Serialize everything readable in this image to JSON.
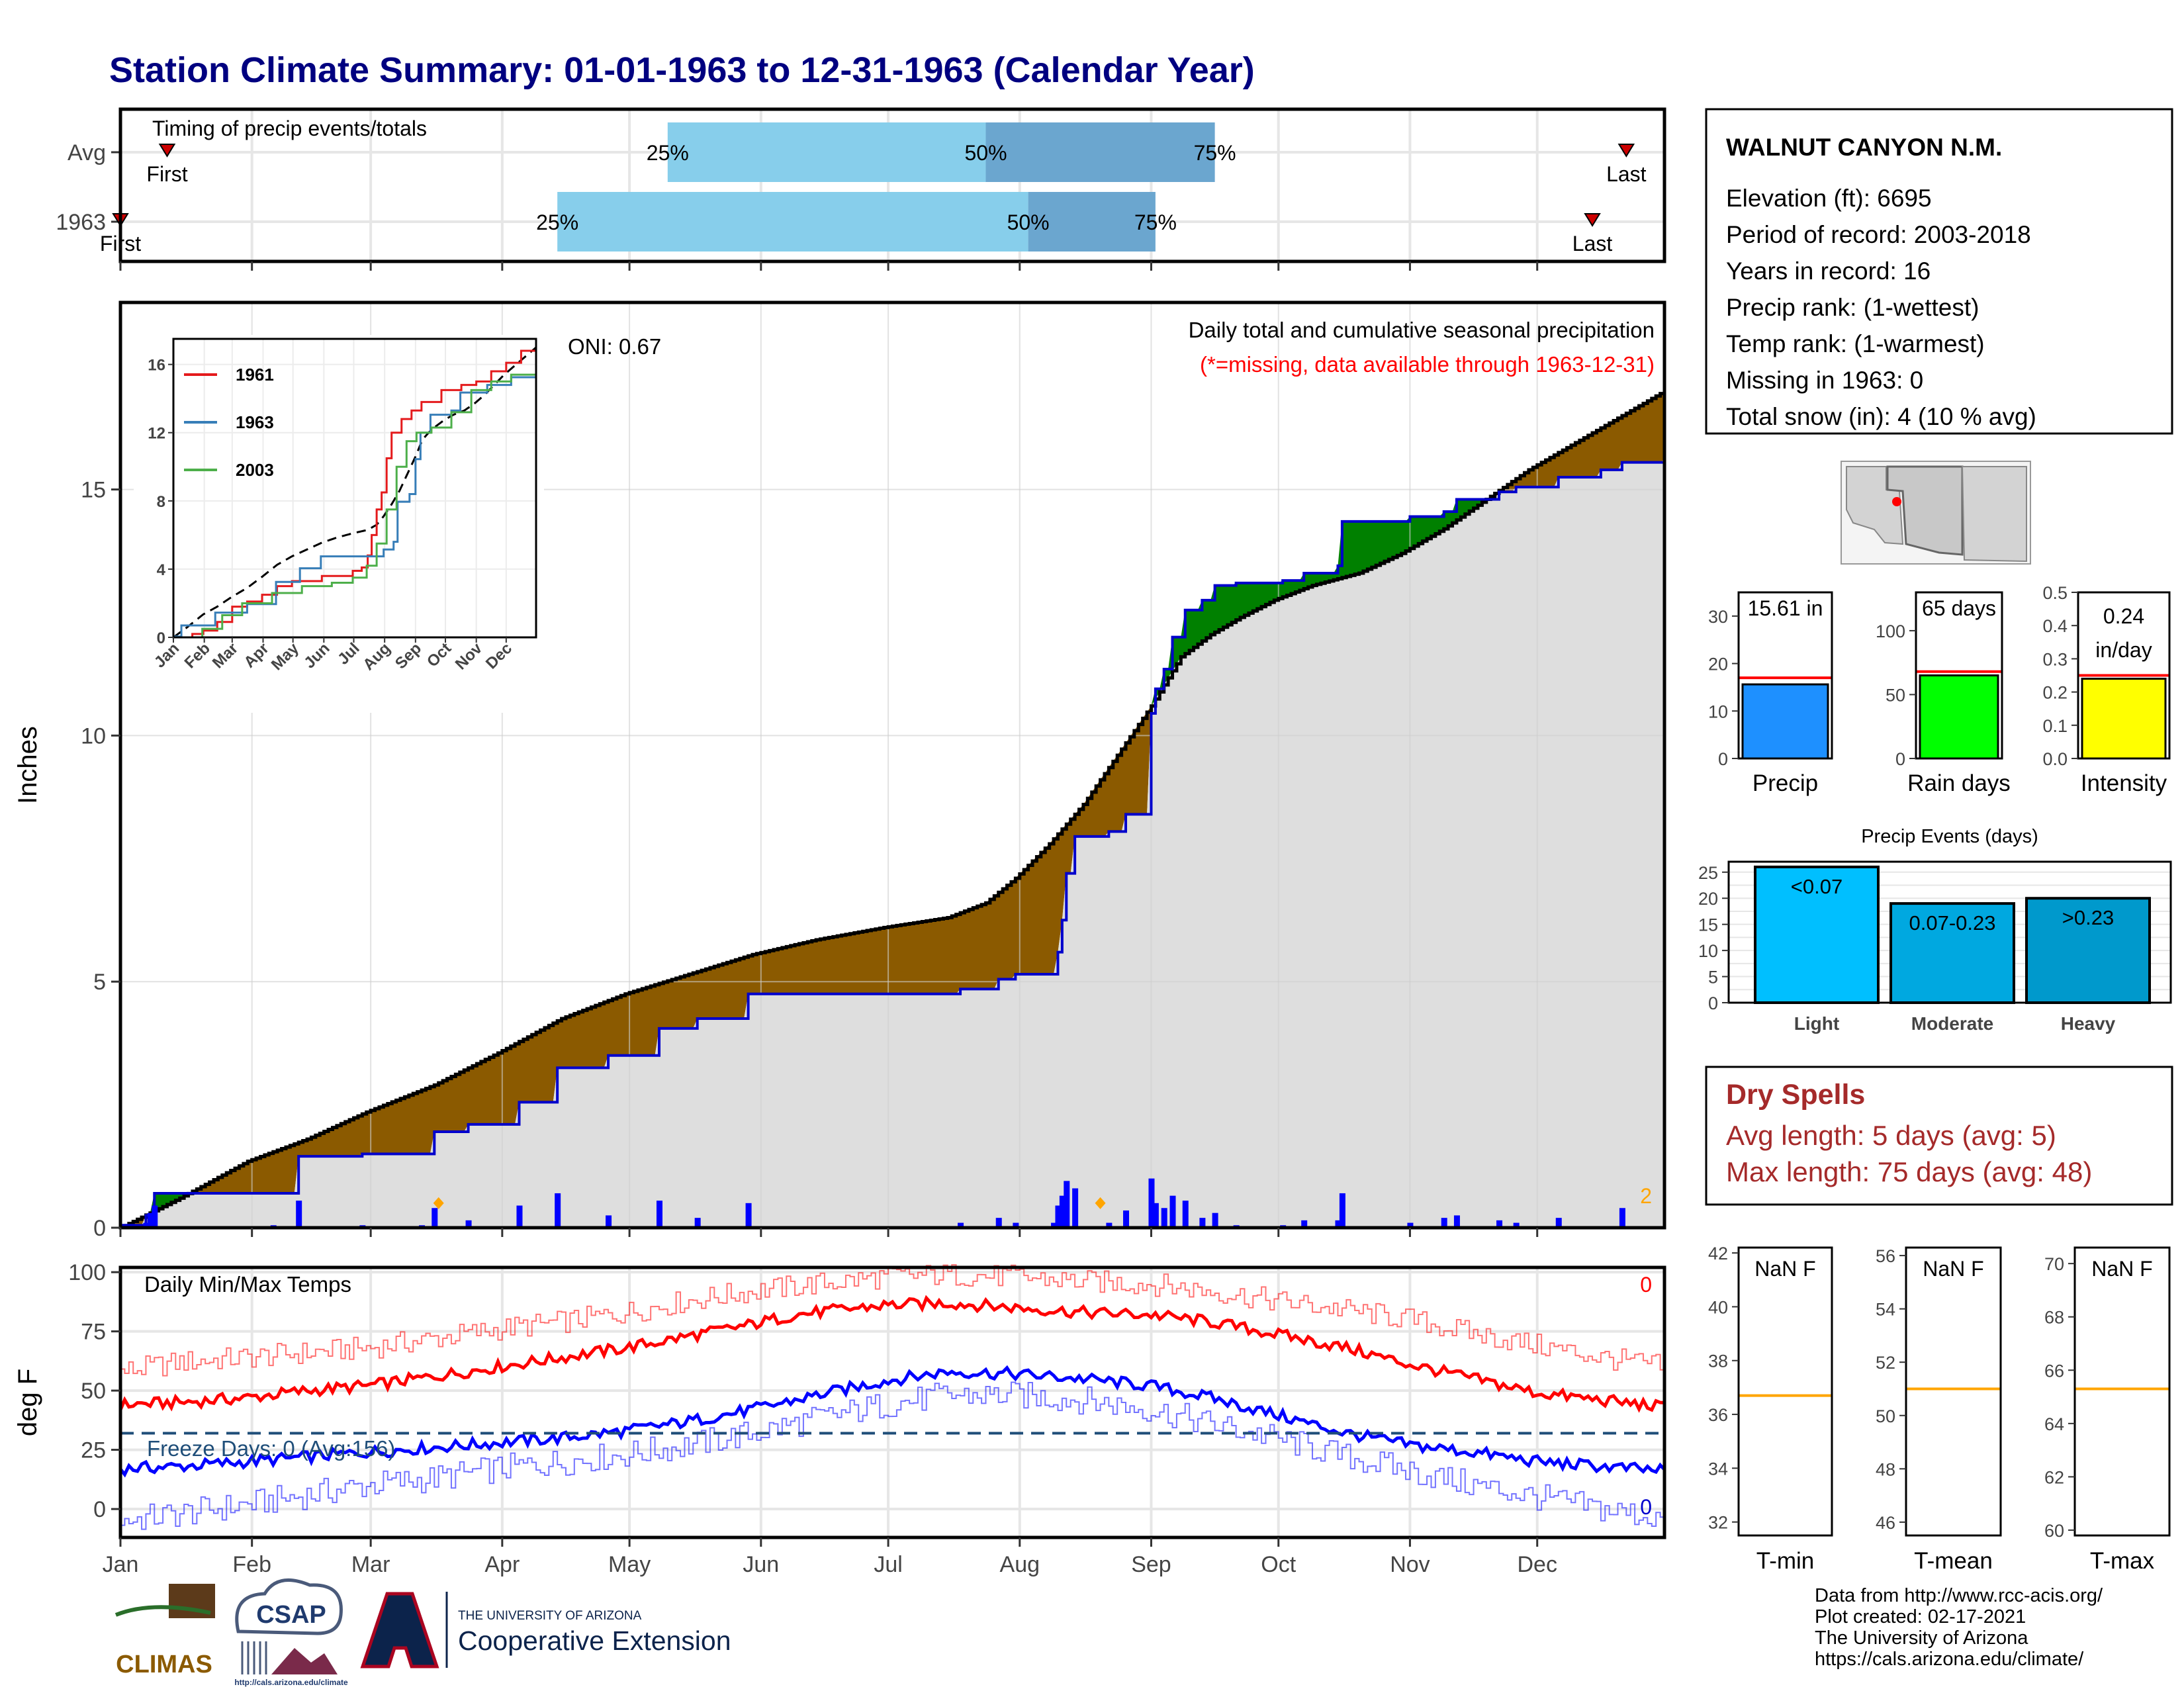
{
  "title": "Station Climate Summary: 01-01-1963 to 12-31-1963 (Calendar Year)",
  "timing": {
    "panel_title": "Timing of precip events/totals",
    "rows": [
      {
        "label": "Avg",
        "first_doy": 12,
        "last_doy": 356,
        "p25_doy": 130,
        "p50_doy": 205,
        "p75_doy": 259,
        "first_label": "First",
        "last_label": "Last"
      },
      {
        "label": "1963",
        "first_doy": 1,
        "last_doy": 348,
        "p25_doy": 104,
        "p50_doy": 215,
        "p75_doy": 245,
        "first_label": "First",
        "last_label": "Last"
      }
    ],
    "pct_labels": [
      "25%",
      "50%",
      "75%"
    ],
    "colors": {
      "light": "#87ceeb",
      "dark": "#6ba6cf",
      "marker": "#cc0000"
    }
  },
  "station": {
    "name": "WALNUT CANYON N.M.",
    "lines": [
      "Elevation (ft): 6695",
      "Period of record: 2003-2018",
      "Years in record: 16",
      "Precip rank:  (1-wettest)",
      "Temp rank:  (1-warmest)",
      "Missing in 1963: 0",
      "Total snow (in): 4 (10 % avg)"
    ]
  },
  "months": [
    "Jan",
    "Feb",
    "Mar",
    "Apr",
    "May",
    "Jun",
    "Jul",
    "Aug",
    "Sep",
    "Oct",
    "Nov",
    "Dec"
  ],
  "precip_main": {
    "ylabel": "Inches",
    "ylim": [
      0,
      18.8
    ],
    "yticks": [
      0,
      5,
      10,
      15
    ],
    "header": "Daily total and cumulative seasonal precipitation",
    "note": "(*=missing, data available through 1963-12-31)",
    "oni": "ONI: 0.67",
    "corner_count": "2",
    "avg_cum": [
      [
        1,
        0
      ],
      [
        15,
        0.6
      ],
      [
        31,
        1.35
      ],
      [
        45,
        1.8
      ],
      [
        59,
        2.35
      ],
      [
        75,
        2.9
      ],
      [
        90,
        3.55
      ],
      [
        105,
        4.25
      ],
      [
        120,
        4.75
      ],
      [
        135,
        5.15
      ],
      [
        150,
        5.55
      ],
      [
        165,
        5.85
      ],
      [
        181,
        6.1
      ],
      [
        196,
        6.3
      ],
      [
        205,
        6.6
      ],
      [
        212,
        7.1
      ],
      [
        220,
        7.8
      ],
      [
        228,
        8.6
      ],
      [
        236,
        9.6
      ],
      [
        244,
        10.6
      ],
      [
        251,
        11.6
      ],
      [
        258,
        12.05
      ],
      [
        265,
        12.4
      ],
      [
        273,
        12.75
      ],
      [
        282,
        13.05
      ],
      [
        293,
        13.3
      ],
      [
        303,
        13.7
      ],
      [
        313,
        14.2
      ],
      [
        323,
        14.8
      ],
      [
        333,
        15.4
      ],
      [
        343,
        15.9
      ],
      [
        353,
        16.4
      ],
      [
        365,
        17.0
      ]
    ],
    "cum_1963": [
      [
        1,
        0.05
      ],
      [
        7,
        0.25
      ],
      [
        9,
        0.7
      ],
      [
        37,
        0.7
      ],
      [
        43,
        1.45
      ],
      [
        57,
        1.45
      ],
      [
        58,
        1.5
      ],
      [
        73,
        1.5
      ],
      [
        75,
        1.95
      ],
      [
        83,
        2.1
      ],
      [
        93,
        2.1
      ],
      [
        95,
        2.55
      ],
      [
        102,
        2.55
      ],
      [
        104,
        3.25
      ],
      [
        115,
        3.25
      ],
      [
        116,
        3.5
      ],
      [
        126,
        3.5
      ],
      [
        128,
        4.05
      ],
      [
        135,
        4.05
      ],
      [
        137,
        4.25
      ],
      [
        147,
        4.25
      ],
      [
        149,
        4.75
      ],
      [
        192,
        4.75
      ],
      [
        199,
        4.85
      ],
      [
        208,
        5.05
      ],
      [
        212,
        5.15
      ],
      [
        221,
        5.15
      ],
      [
        222,
        5.6
      ],
      [
        223,
        6.25
      ],
      [
        224,
        7.2
      ],
      [
        226,
        7.95
      ],
      [
        234,
        8.05
      ],
      [
        238,
        8.4
      ],
      [
        244,
        10.45
      ],
      [
        245,
        10.95
      ],
      [
        247,
        11.35
      ],
      [
        249,
        12.0
      ],
      [
        252,
        12.55
      ],
      [
        256,
        12.75
      ],
      [
        259,
        13.05
      ],
      [
        264,
        13.1
      ],
      [
        275,
        13.15
      ],
      [
        280,
        13.3
      ],
      [
        288,
        13.45
      ],
      [
        289,
        14.35
      ],
      [
        298,
        14.35
      ],
      [
        305,
        14.45
      ],
      [
        313,
        14.55
      ],
      [
        316,
        14.8
      ],
      [
        326,
        14.95
      ],
      [
        330,
        15.05
      ],
      [
        340,
        15.25
      ],
      [
        350,
        15.4
      ],
      [
        355,
        15.55
      ],
      [
        365,
        15.61
      ]
    ],
    "daily_1963": [
      [
        2,
        0.02
      ],
      [
        4,
        0.03
      ],
      [
        7,
        0.1
      ],
      [
        8,
        0.3
      ],
      [
        9,
        0.45
      ],
      [
        15,
        0.02
      ],
      [
        37,
        0.05
      ],
      [
        43,
        0.55
      ],
      [
        57,
        0.02
      ],
      [
        58,
        0.05
      ],
      [
        72,
        0.05
      ],
      [
        75,
        0.4
      ],
      [
        83,
        0.15
      ],
      [
        95,
        0.45
      ],
      [
        104,
        0.7
      ],
      [
        116,
        0.25
      ],
      [
        128,
        0.55
      ],
      [
        137,
        0.2
      ],
      [
        149,
        0.5
      ],
      [
        192,
        0.02
      ],
      [
        199,
        0.1
      ],
      [
        208,
        0.2
      ],
      [
        212,
        0.1
      ],
      [
        221,
        0.1
      ],
      [
        222,
        0.45
      ],
      [
        223,
        0.65
      ],
      [
        224,
        0.95
      ],
      [
        226,
        0.8
      ],
      [
        234,
        0.1
      ],
      [
        238,
        0.35
      ],
      [
        244,
        1.0
      ],
      [
        245,
        0.5
      ],
      [
        247,
        0.4
      ],
      [
        249,
        0.65
      ],
      [
        252,
        0.55
      ],
      [
        256,
        0.2
      ],
      [
        259,
        0.3
      ],
      [
        264,
        0.05
      ],
      [
        275,
        0.05
      ],
      [
        280,
        0.15
      ],
      [
        288,
        0.15
      ],
      [
        289,
        0.7
      ],
      [
        305,
        0.1
      ],
      [
        313,
        0.2
      ],
      [
        316,
        0.25
      ],
      [
        326,
        0.15
      ],
      [
        330,
        0.1
      ],
      [
        340,
        0.2
      ],
      [
        355,
        0.4
      ]
    ],
    "markers_doy": [
      76,
      232
    ],
    "colors": {
      "below_avg": "#8b5a00",
      "above_avg": "#008000",
      "cum_line": "#0000cc",
      "avg_line": "#000000",
      "fill_base": "#dedede",
      "bars": "#0000ff",
      "marker": "#ffa500"
    }
  },
  "inset": {
    "yticks": [
      0,
      4,
      8,
      12,
      16
    ],
    "ylim": [
      0,
      17.5
    ],
    "series": [
      {
        "name": "1961",
        "color": "#e41a1c",
        "points": [
          [
            1,
            0
          ],
          [
            20,
            0.2
          ],
          [
            31,
            0.4
          ],
          [
            45,
            0.9
          ],
          [
            60,
            1.8
          ],
          [
            75,
            2.1
          ],
          [
            90,
            2.5
          ],
          [
            105,
            3.0
          ],
          [
            120,
            3.3
          ],
          [
            150,
            3.6
          ],
          [
            181,
            3.9
          ],
          [
            190,
            4.1
          ],
          [
            196,
            4.8
          ],
          [
            200,
            6.0
          ],
          [
            205,
            7.5
          ],
          [
            210,
            8.5
          ],
          [
            215,
            10.5
          ],
          [
            220,
            12.0
          ],
          [
            230,
            12.8
          ],
          [
            240,
            13.3
          ],
          [
            250,
            13.8
          ],
          [
            270,
            14.5
          ],
          [
            290,
            14.8
          ],
          [
            305,
            15.0
          ],
          [
            320,
            15.6
          ],
          [
            335,
            16.1
          ],
          [
            350,
            16.8
          ],
          [
            365,
            17.2
          ]
        ]
      },
      {
        "name": "1963",
        "color": "#377eb8",
        "points": [
          [
            1,
            0.05
          ],
          [
            9,
            0.7
          ],
          [
            37,
            0.7
          ],
          [
            43,
            1.45
          ],
          [
            75,
            1.95
          ],
          [
            104,
            3.25
          ],
          [
            128,
            4.05
          ],
          [
            149,
            4.75
          ],
          [
            192,
            4.75
          ],
          [
            212,
            5.15
          ],
          [
            222,
            5.6
          ],
          [
            226,
            7.95
          ],
          [
            238,
            8.4
          ],
          [
            244,
            10.45
          ],
          [
            249,
            12.0
          ],
          [
            259,
            13.05
          ],
          [
            280,
            13.3
          ],
          [
            289,
            14.35
          ],
          [
            316,
            14.8
          ],
          [
            340,
            15.25
          ],
          [
            365,
            15.61
          ]
        ]
      },
      {
        "name": "2003",
        "color": "#4daf4a",
        "points": [
          [
            1,
            0
          ],
          [
            30,
            0.5
          ],
          [
            50,
            1.3
          ],
          [
            70,
            2.0
          ],
          [
            100,
            2.6
          ],
          [
            130,
            3.0
          ],
          [
            160,
            3.2
          ],
          [
            181,
            3.5
          ],
          [
            195,
            4.2
          ],
          [
            205,
            5.5
          ],
          [
            215,
            7.5
          ],
          [
            225,
            10.0
          ],
          [
            235,
            11.5
          ],
          [
            245,
            12.0
          ],
          [
            260,
            12.3
          ],
          [
            280,
            13.2
          ],
          [
            300,
            14.5
          ],
          [
            320,
            15.0
          ],
          [
            340,
            15.4
          ],
          [
            365,
            16.2
          ]
        ]
      }
    ],
    "avg_style": "dashed"
  },
  "map": {
    "label": ""
  },
  "stat_panels": [
    {
      "label": "Precip",
      "value_text": "15.61 in",
      "value": 15.61,
      "avg": 17.0,
      "ylim": [
        0,
        35
      ],
      "yticks": [
        0,
        10,
        20,
        30
      ],
      "color": "#1e90ff"
    },
    {
      "label": "Rain days",
      "value_text": "65 days",
      "value": 65,
      "avg": 68,
      "ylim": [
        0,
        130
      ],
      "yticks": [
        0,
        50,
        100
      ],
      "color": "#00ff00"
    },
    {
      "label": "Intensity",
      "value_text": "0.24 in/day",
      "value_text_line1": "0.24",
      "value_text_line2": "in/day",
      "value": 0.24,
      "avg": 0.25,
      "ylim": [
        0,
        0.5
      ],
      "yticks": [
        0.0,
        0.1,
        0.2,
        0.3,
        0.4,
        0.5
      ],
      "color": "#ffff00"
    }
  ],
  "events": {
    "title": "Precip Events (days)",
    "type": "bar",
    "categories": [
      "Light",
      "Moderate",
      "Heavy"
    ],
    "bar_labels": [
      "<0.07",
      "0.07-0.23",
      ">0.23"
    ],
    "values": [
      26,
      19,
      20
    ],
    "ylim": [
      0,
      27
    ],
    "yticks": [
      0,
      5,
      10,
      15,
      20,
      25
    ],
    "colors": [
      "#00bfff",
      "#00a8e0",
      "#0099cc"
    ]
  },
  "dry_spells": {
    "title": "Dry Spells",
    "lines": [
      "Avg length: 5 days (avg: 5)",
      "Max length: 75 days (avg: 48)"
    ],
    "color": "#a52a2a"
  },
  "temps": {
    "ylabel": "deg F",
    "title": "Daily Min/Max Temps",
    "ylim": [
      -12,
      102
    ],
    "yticks": [
      0,
      25,
      50,
      75,
      100
    ],
    "freeze_label": "Freeze Days: 0 (Avg:156)",
    "freeze_temp": 32,
    "max_count": "0",
    "min_count": "0",
    "max_avg": [
      [
        1,
        44
      ],
      [
        15,
        45
      ],
      [
        31,
        47
      ],
      [
        45,
        50
      ],
      [
        59,
        52
      ],
      [
        75,
        56
      ],
      [
        90,
        60
      ],
      [
        105,
        64
      ],
      [
        120,
        68
      ],
      [
        135,
        73
      ],
      [
        150,
        78
      ],
      [
        160,
        82
      ],
      [
        170,
        84
      ],
      [
        181,
        86
      ],
      [
        196,
        87
      ],
      [
        212,
        85
      ],
      [
        228,
        83
      ],
      [
        244,
        82
      ],
      [
        258,
        79
      ],
      [
        273,
        74
      ],
      [
        290,
        68
      ],
      [
        305,
        61
      ],
      [
        320,
        55
      ],
      [
        335,
        49
      ],
      [
        350,
        46
      ],
      [
        365,
        43
      ]
    ],
    "min_avg": [
      [
        1,
        17
      ],
      [
        15,
        18
      ],
      [
        31,
        20
      ],
      [
        45,
        22
      ],
      [
        59,
        24
      ],
      [
        75,
        26
      ],
      [
        90,
        28
      ],
      [
        105,
        30
      ],
      [
        120,
        33
      ],
      [
        135,
        37
      ],
      [
        150,
        42
      ],
      [
        165,
        48
      ],
      [
        181,
        54
      ],
      [
        196,
        58
      ],
      [
        212,
        57
      ],
      [
        228,
        55
      ],
      [
        244,
        52
      ],
      [
        258,
        47
      ],
      [
        273,
        40
      ],
      [
        290,
        32
      ],
      [
        305,
        27
      ],
      [
        320,
        24
      ],
      [
        335,
        20
      ],
      [
        350,
        18
      ],
      [
        365,
        16
      ]
    ],
    "max_hi": [
      [
        1,
        58
      ],
      [
        15,
        62
      ],
      [
        31,
        64
      ],
      [
        45,
        66
      ],
      [
        59,
        68
      ],
      [
        75,
        72
      ],
      [
        90,
        76
      ],
      [
        105,
        79
      ],
      [
        120,
        83
      ],
      [
        135,
        88
      ],
      [
        150,
        92
      ],
      [
        165,
        95
      ],
      [
        181,
        98
      ],
      [
        196,
        99
      ],
      [
        212,
        98
      ],
      [
        228,
        96
      ],
      [
        244,
        95
      ],
      [
        258,
        92
      ],
      [
        273,
        88
      ],
      [
        290,
        84
      ],
      [
        305,
        80
      ],
      [
        320,
        74
      ],
      [
        335,
        69
      ],
      [
        350,
        64
      ],
      [
        365,
        60
      ]
    ],
    "min_lo": [
      [
        1,
        -5
      ],
      [
        15,
        -2
      ],
      [
        31,
        2
      ],
      [
        45,
        6
      ],
      [
        59,
        10
      ],
      [
        75,
        13
      ],
      [
        90,
        17
      ],
      [
        105,
        20
      ],
      [
        120,
        23
      ],
      [
        135,
        27
      ],
      [
        150,
        32
      ],
      [
        165,
        38
      ],
      [
        181,
        44
      ],
      [
        196,
        48
      ],
      [
        212,
        48
      ],
      [
        228,
        46
      ],
      [
        244,
        42
      ],
      [
        258,
        36
      ],
      [
        273,
        30
      ],
      [
        290,
        22
      ],
      [
        305,
        16
      ],
      [
        320,
        10
      ],
      [
        335,
        5
      ],
      [
        350,
        0
      ],
      [
        365,
        -4
      ]
    ],
    "colors": {
      "max": "#ff0000",
      "min": "#0000ff",
      "freeze": "#1f4e79"
    }
  },
  "temp_panels": [
    {
      "value_text": "NaN F",
      "label": "T-min",
      "ylim": [
        31.5,
        42.2
      ],
      "yticks": [
        32,
        34,
        36,
        38,
        40,
        42
      ],
      "avg": 36.7
    },
    {
      "value_text": "NaN F",
      "label": "T-mean",
      "ylim": [
        45.5,
        56.3
      ],
      "yticks": [
        46,
        48,
        50,
        52,
        54,
        56
      ],
      "avg": 51.0
    },
    {
      "value_text": "NaN F",
      "label": "T-max",
      "ylim": [
        59.8,
        70.6
      ],
      "yticks": [
        60,
        62,
        64,
        66,
        68,
        70
      ],
      "avg": 65.3
    }
  ],
  "footer": {
    "lines": [
      "Data from http://www.rcc-acis.org/",
      "Plot created: 02-17-2021",
      "The University of Arizona",
      "https://cals.arizona.edu/climate/"
    ]
  },
  "logos": {
    "climas": "CLIMAS",
    "csap": "CSAP",
    "csap_url": "http://cals.arizona.edu/climate",
    "ua_top": "THE UNIVERSITY OF ARIZONA",
    "ua_bottom": "Cooperative Extension"
  }
}
